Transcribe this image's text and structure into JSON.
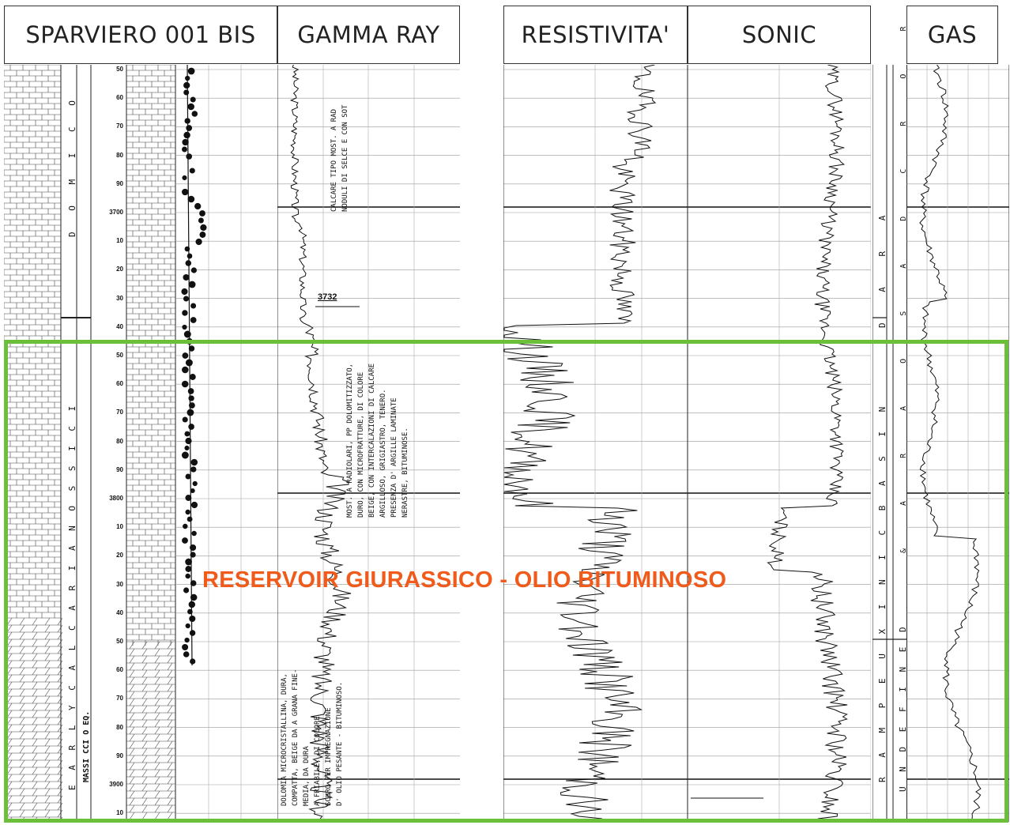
{
  "headers": {
    "well": "SPARVIERO  001 BIS",
    "gamma": "GAMMA RAY",
    "resistivity": "RESISTIVITA'",
    "sonic": "SONIC",
    "gas": "GAS"
  },
  "reservoir_label": "RESERVOIR GIURASSICO - OLIO BITUMINOSO",
  "depth_marker": "3732",
  "depth_labels": [
    "50",
    "60",
    "70",
    "80",
    "90",
    "3700",
    "10",
    "20",
    "30",
    "40",
    "50",
    "60",
    "70",
    "80",
    "90",
    "3800",
    "10",
    "20",
    "30",
    "40",
    "50",
    "60",
    "70",
    "80",
    "90",
    "3900",
    "10"
  ],
  "formation_labels": {
    "upper": "D O M I C O",
    "lower": "E A R L Y  C A L C A R I  A N O S S I C I",
    "left_bottom": "MASSI CCI O EQ.",
    "right_upper": "D  A  R  A",
    "right_lower": "R A M P  E U X I N I C  B A S I N",
    "right_undef": "U N D E F I N E D",
    "gas_letters": "& A R A O S A D C R O R"
  },
  "annotations": {
    "gamma_upper_1": "CALCARE TIPO MOST. A RAD",
    "gamma_upper_2": "NODULI DI SELCE E CON SOT",
    "gamma_mid_1": "MOST. A RADIOLARI, PP DOLOMITIZZATO,",
    "gamma_mid_2": "DURO, CON MICROFRATTURE, DI COLORE",
    "gamma_mid_3": "BEIGE, CON INTERCALAZIONI DI CALCARE",
    "gamma_mid_4": "ARGILLOSO, GRIGIASTRO, TENERO.",
    "gamma_mid_5": "PRESENZA D' ARGILLE LAMINATE",
    "gamma_mid_6": "NERASTRE, BITUMINOSE.",
    "gamma_low_1": "DOLOMIA MICROCRISTALLINA, DURA,",
    "gamma_low_2": "COMPATTA, BEIGE DA A GRANA FINE-",
    "gamma_low_3": "MEDIA, DA DURA",
    "gamma_low_4": "A FRIABILE, DI COLORE",
    "gamma_low_5": "SCURO PER IMPREGNAZIONE",
    "gamma_low_6": "D' OLIO PESANTE - BITUMINOSO."
  },
  "colors": {
    "highlight_border": "#6cbf3a",
    "reservoir_text": "#f05a1a",
    "ink": "#111111"
  }
}
